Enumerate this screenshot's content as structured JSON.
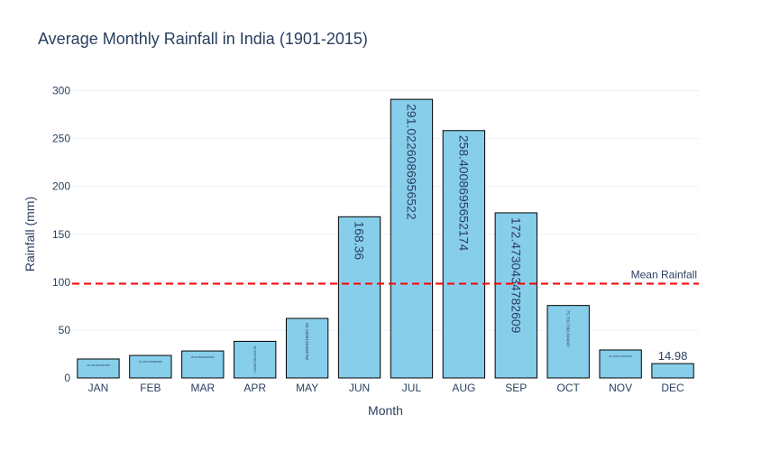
{
  "chart_data": {
    "type": "bar",
    "title": "Average Monthly Rainfall in India (1901-2015)",
    "xlabel": "Month",
    "ylabel": "Rainfall (mm)",
    "categories": [
      "JAN",
      "FEB",
      "MAR",
      "APR",
      "MAY",
      "JUN",
      "JUL",
      "AUG",
      "SEP",
      "OCT",
      "NOV",
      "DEC"
    ],
    "values": [
      19.7991304347826,
      23.4947826086956,
      28.2078260869565,
      38.2437391304347,
      62.1939130434782,
      168.36,
      291.0226086956522,
      258.4008695652174,
      172.4730434782609,
      75.7017391304347,
      29.1952173913043,
      14.98
    ],
    "value_labels": [
      "19.7991304347826",
      "23.4947826086956",
      "28.2078260869565",
      "38.2437391304347",
      "62.1939130434782",
      "168.36",
      "291.0226086956522",
      "258.4008695652174",
      "172.4730434782609",
      "75.7017391304347",
      "29.1952173913043",
      "14.98"
    ],
    "ylim": [
      0,
      310
    ],
    "yticks": [
      0,
      50,
      100,
      150,
      200,
      250,
      300
    ],
    "grid": true,
    "bar_color": "#87ceeb",
    "bar_outline": "#000000",
    "mean_line": {
      "value": 98.5,
      "label": "Mean Rainfall",
      "color": "#ff0000",
      "style": "dashed"
    }
  }
}
